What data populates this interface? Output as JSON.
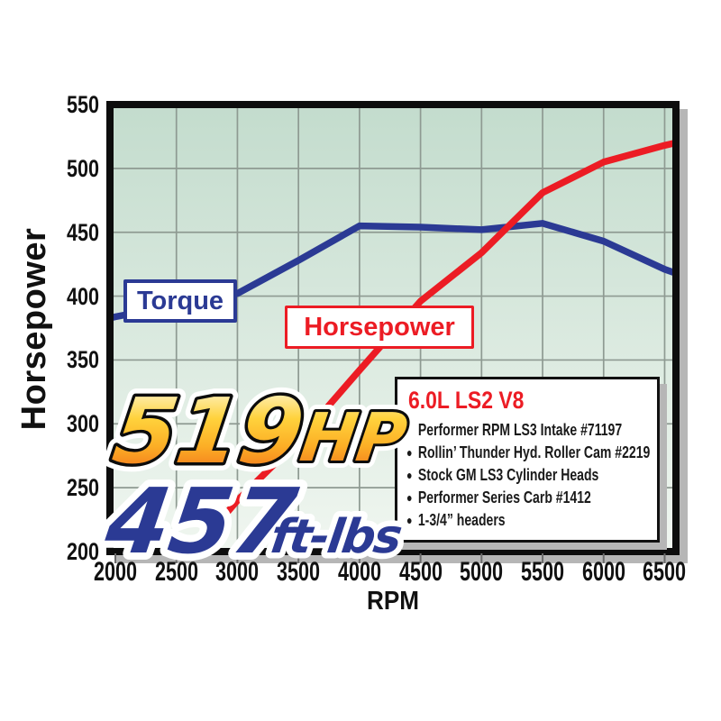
{
  "hero": {
    "hp_value": "519",
    "hp_unit": "HP",
    "tq_value": "457",
    "tq_unit": "ft-lbs"
  },
  "curve_labels": {
    "torque": "Torque",
    "horsepower": "Horsepower"
  },
  "spec_box": {
    "title": "6.0L LS2 V8",
    "items": [
      "Performer RPM LS3 Intake #71197",
      "Rollin’ Thunder Hyd. Roller Cam #2219",
      "Stock GM LS3 Cylinder Heads",
      "Performer Series Carb #1412",
      "1-3/4” headers"
    ]
  },
  "colors": {
    "torque_blue": "#2b3a94",
    "horsepower_red": "#ec1c24",
    "grid_gray": "#8e9a92",
    "frame_black": "#0d0d0d",
    "plot_bg_top": "#c3dccd",
    "plot_bg_bottom": "#f0f6f0",
    "shadow_gray": "#b6b6b6",
    "gold_top": "#fdfbe8",
    "gold_mid": "#ffd23c",
    "gold_bottom": "#f6891f"
  },
  "chart_data": {
    "type": "line",
    "title": "",
    "xlabel": "RPM",
    "ylabel": "Horsepower",
    "xlim": [
      1955,
      6590
    ],
    "ylim": [
      200,
      550
    ],
    "x_ticks": [
      2000,
      2500,
      3000,
      3500,
      4000,
      4500,
      5000,
      5500,
      6000,
      6500
    ],
    "y_ticks": [
      550,
      500,
      450,
      400,
      350,
      300,
      250,
      200
    ],
    "grid": true,
    "legend_position": "on-curve-boxes",
    "series": [
      {
        "name": "Torque",
        "color": "#2b3a94",
        "points": [
          [
            1955,
            383
          ],
          [
            2500,
            393
          ],
          [
            3000,
            402
          ],
          [
            3500,
            428
          ],
          [
            4000,
            455
          ],
          [
            4500,
            454
          ],
          [
            5000,
            452
          ],
          [
            5500,
            457
          ],
          [
            6000,
            443
          ],
          [
            6500,
            421
          ],
          [
            6590,
            418
          ]
        ]
      },
      {
        "name": "Horsepower",
        "color": "#ec1c24",
        "points": [
          [
            2640,
            200
          ],
          [
            3000,
            240
          ],
          [
            3500,
            287
          ],
          [
            4000,
            342
          ],
          [
            4500,
            396
          ],
          [
            5000,
            434
          ],
          [
            5500,
            481
          ],
          [
            6000,
            505
          ],
          [
            6500,
            518
          ],
          [
            6590,
            520
          ]
        ]
      }
    ]
  }
}
